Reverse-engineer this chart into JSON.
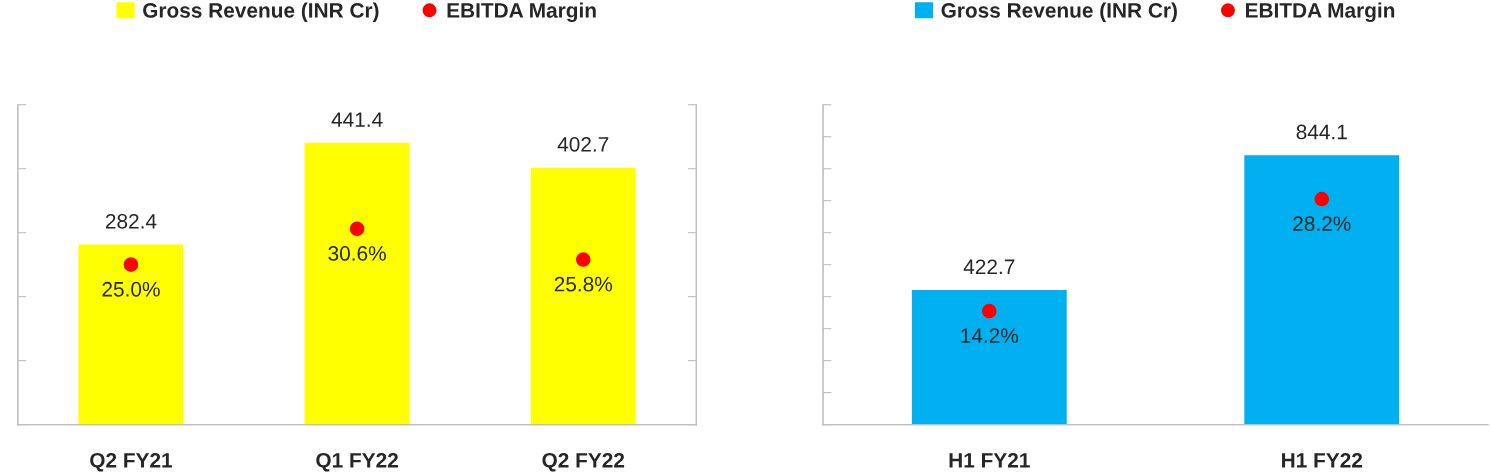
{
  "chart_data": [
    {
      "type": "bar",
      "categories": [
        "Q2 FY21",
        "Q1 FY22",
        "Q2 FY22"
      ],
      "legend": "top",
      "tick_labels": "x",
      "data_labels": true,
      "grid": false,
      "ylim": [
        0,
        500
      ],
      "yticks": [
        {
          "value": 0,
          "label": null
        },
        {
          "value": 100,
          "label": null
        },
        {
          "value": 200,
          "label": null
        },
        {
          "value": 300,
          "label": null
        },
        {
          "value": 400,
          "label": null
        },
        {
          "value": 500,
          "label": null
        }
      ],
      "y2lim": [
        0,
        50
      ],
      "y2ticks": [
        {
          "value": 0,
          "label": null
        },
        {
          "value": 10,
          "label": null
        },
        {
          "value": 20,
          "label": null
        },
        {
          "value": 30,
          "label": null
        },
        {
          "value": 40,
          "label": null
        },
        {
          "value": 50,
          "label": null
        }
      ],
      "series": [
        {
          "name": "Gross Revenue (INR Cr)",
          "color": "#ffff00",
          "values": [
            282.4,
            441.4,
            402.7
          ]
        },
        {
          "name": "EBITDA Margin",
          "type": "scatter",
          "axis": "y2",
          "marker": "circle",
          "color": "#ff0000",
          "values": [
            25.0,
            30.6,
            25.8
          ],
          "value_labels": [
            "25.0%",
            "30.6%",
            "25.8%"
          ]
        }
      ]
    },
    {
      "type": "bar",
      "categories": [
        "H1 FY21",
        "H1 FY22"
      ],
      "legend": "top",
      "tick_labels": "x",
      "data_labels": true,
      "grid": false,
      "ylim": [
        0,
        1000
      ],
      "yticks": [
        {
          "value": 0,
          "label": null
        },
        {
          "value": 100,
          "label": null
        },
        {
          "value": 200,
          "label": null
        },
        {
          "value": 300,
          "label": null
        },
        {
          "value": 400,
          "label": null
        },
        {
          "value": 500,
          "label": null
        },
        {
          "value": 600,
          "label": null
        },
        {
          "value": 700,
          "label": null
        },
        {
          "value": 800,
          "label": null
        },
        {
          "value": 900,
          "label": null
        },
        {
          "value": 1000,
          "label": null
        }
      ],
      "y2lim": [
        0,
        40
      ],
      "series": [
        {
          "name": "Gross Revenue (INR Cr)",
          "color": "#00b0f0",
          "values": [
            422.7,
            844.1
          ]
        },
        {
          "name": "EBITDA Margin",
          "type": "scatter",
          "axis": "y2",
          "marker": "circle",
          "color": "#ff0000",
          "values": [
            14.2,
            28.2
          ],
          "value_labels": [
            "14.2%",
            "28.2%"
          ]
        }
      ]
    }
  ]
}
